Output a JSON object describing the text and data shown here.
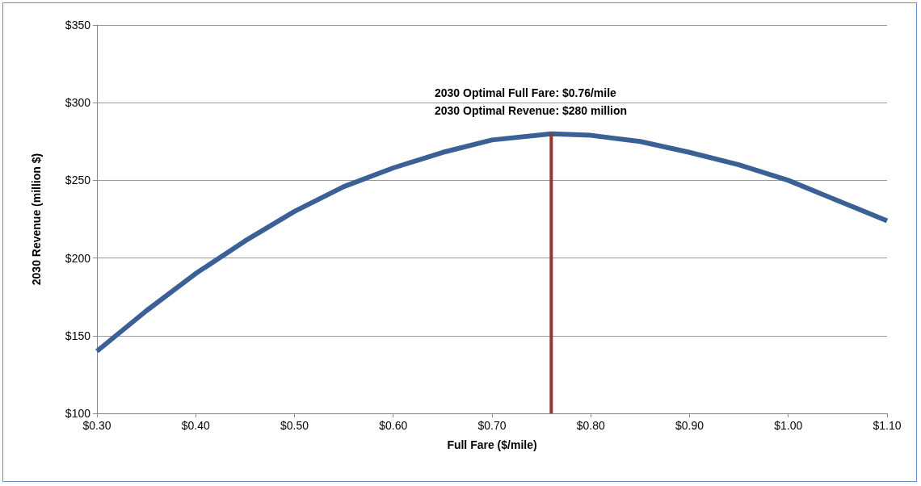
{
  "chart_data": {
    "type": "line",
    "xlabel": "Full Fare ($/mile)",
    "ylabel": "2030 Revenue (million $)",
    "x": [
      0.3,
      0.35,
      0.4,
      0.45,
      0.5,
      0.55,
      0.6,
      0.65,
      0.7,
      0.76,
      0.8,
      0.85,
      0.9,
      0.95,
      1.0,
      1.05,
      1.1
    ],
    "series": [
      {
        "color": "#3a6096",
        "values": [
          140,
          166,
          190,
          211,
          230,
          246,
          258,
          268,
          276,
          280,
          279,
          275,
          268,
          260,
          250,
          237,
          224
        ]
      },
      {
        "color": "#953735",
        "x": [
          0.76,
          0.76
        ],
        "values": [
          100,
          280
        ]
      }
    ],
    "xlim": [
      0.3,
      1.1
    ],
    "xticks": [
      {
        "value": 0.3,
        "label": "$0.30"
      },
      {
        "value": 0.4,
        "label": "$0.40"
      },
      {
        "value": 0.5,
        "label": "$0.50"
      },
      {
        "value": 0.6,
        "label": "$0.60"
      },
      {
        "value": 0.7,
        "label": "$0.70"
      },
      {
        "value": 0.8,
        "label": "$0.80"
      },
      {
        "value": 0.9,
        "label": "$0.90"
      },
      {
        "value": 1.0,
        "label": "$1.00"
      },
      {
        "value": 1.1,
        "label": "$1.10"
      }
    ],
    "ylim": [
      100,
      350
    ],
    "yticks": [
      {
        "value": 100,
        "label": "$100"
      },
      {
        "value": 150,
        "label": "$150"
      },
      {
        "value": 200,
        "label": "$200"
      },
      {
        "value": 250,
        "label": "$250"
      },
      {
        "value": 300,
        "label": "$300"
      },
      {
        "value": 350,
        "label": "$350"
      }
    ],
    "annotations": [
      "2030 Optimal Full Fare: $0.76/mile",
      "2030 Optimal Revenue: $280 million"
    ],
    "grid": "y",
    "marker": "none",
    "line_style": "solid"
  }
}
